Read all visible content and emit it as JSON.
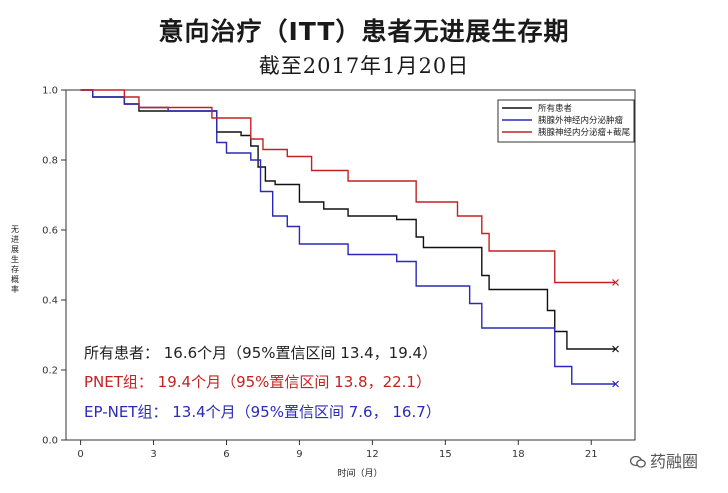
{
  "chart_data": {
    "type": "line",
    "title": "意向治疗（ITT）患者无进展生存期",
    "subtitle": "截至2017年1月20日",
    "xlabel": "时间（月）",
    "ylabel": "无进展生存概率",
    "xlim": [
      -0.6,
      22.8
    ],
    "ylim": [
      0.0,
      1.0
    ],
    "xticks": [
      0,
      3,
      6,
      9,
      12,
      15,
      18,
      21
    ],
    "yticks": [
      0.0,
      0.2,
      0.4,
      0.6,
      0.8,
      1.0
    ],
    "xtick_labels": [
      "0",
      "3",
      "6",
      "9",
      "12",
      "15",
      "18",
      "21"
    ],
    "ytick_labels": [
      "0.0",
      "0.2",
      "0.4",
      "0.6",
      "0.8",
      "1.0"
    ],
    "step": true,
    "legend_position": "top-right",
    "series": [
      {
        "name": "所有患者",
        "color": "#111111",
        "x": [
          0,
          0.5,
          1.8,
          2.4,
          3.6,
          5.6,
          6.6,
          7.0,
          7.3,
          7.6,
          8.0,
          9.0,
          10.0,
          11.0,
          13.0,
          13.8,
          14.1,
          16.5,
          16.8,
          19.2,
          19.5,
          20.0,
          22.0
        ],
        "y": [
          1.0,
          0.98,
          0.96,
          0.94,
          0.94,
          0.88,
          0.87,
          0.84,
          0.78,
          0.74,
          0.73,
          0.68,
          0.66,
          0.64,
          0.63,
          0.58,
          0.55,
          0.47,
          0.43,
          0.37,
          0.31,
          0.26,
          0.26
        ]
      },
      {
        "name": "胰腺外神经内分泌肿瘤",
        "color": "#2a2ab8",
        "x": [
          0,
          0.5,
          1.8,
          2.4,
          3.6,
          5.6,
          6.0,
          7.0,
          7.4,
          7.9,
          8.5,
          9.0,
          11.0,
          13.0,
          13.8,
          16.0,
          16.5,
          19.5,
          20.2,
          22.0
        ],
        "y": [
          1.0,
          0.98,
          0.96,
          0.95,
          0.94,
          0.85,
          0.82,
          0.8,
          0.71,
          0.64,
          0.61,
          0.56,
          0.53,
          0.51,
          0.44,
          0.39,
          0.32,
          0.21,
          0.16,
          0.16
        ]
      },
      {
        "name": "胰腺神经内分泌瘤+截尾",
        "color": "#c42222",
        "x": [
          0,
          1.8,
          2.4,
          5.4,
          7.0,
          7.5,
          8.5,
          9.5,
          11.0,
          13.8,
          15.5,
          16.5,
          16.8,
          19.5,
          22.0
        ],
        "y": [
          1.0,
          0.98,
          0.95,
          0.92,
          0.86,
          0.83,
          0.81,
          0.77,
          0.74,
          0.68,
          0.64,
          0.59,
          0.54,
          0.45,
          0.45
        ]
      }
    ],
    "annotations": [
      "所有患者：  16.6个月（95%置信区间 13.4，19.4）",
      "PNET组：    19.4个月（95%置信区间 13.8，22.1）",
      "EP-NET组：  13.4个月（95%置信区间 7.6，   16.7）"
    ]
  },
  "watermark": "药融圈"
}
